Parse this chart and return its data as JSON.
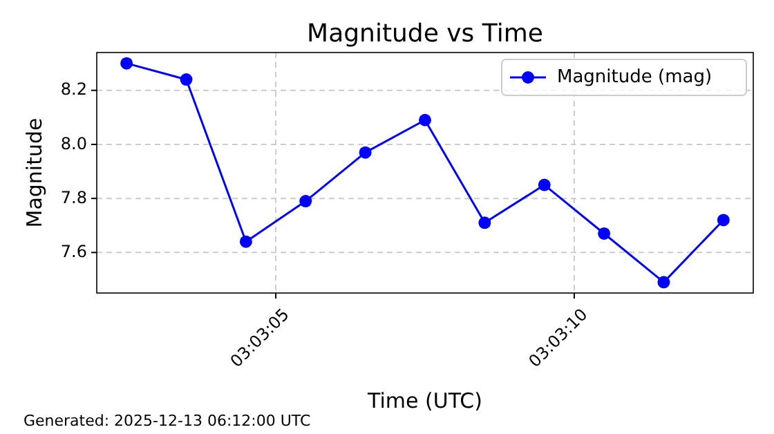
{
  "chart_data": {
    "type": "line",
    "title": "Magnitude vs Time",
    "xlabel": "Time (UTC)",
    "ylabel": "Magnitude",
    "x": [
      3.0506944,
      3.0509722,
      3.05125,
      3.0515278,
      3.0518056,
      3.0520833,
      3.0523611,
      3.0526389,
      3.0529167,
      3.0531944,
      3.0534722
    ],
    "series": [
      {
        "name": "Magnitude (mag)",
        "color": "#0000ff",
        "values": [
          8.3,
          8.24,
          7.64,
          7.79,
          7.97,
          8.09,
          7.71,
          7.85,
          7.67,
          7.49,
          7.72
        ]
      }
    ],
    "xlim": [
      3.0505556,
      3.0536111
    ],
    "xticks": [
      {
        "value": 3.0513889,
        "label": "03:03:05"
      },
      {
        "value": 3.0527778,
        "label": "03:03:10"
      }
    ],
    "ylim": [
      7.45,
      8.34
    ],
    "yticks": [
      7.6,
      7.8,
      {
        "value": 8,
        "label": "8.0"
      },
      8.2
    ],
    "grid": true,
    "legend": "top right",
    "marker": "circle",
    "line_style": "solid",
    "annotations": [
      "Generated: 2025-12-13 06:12:00 UTC"
    ]
  }
}
